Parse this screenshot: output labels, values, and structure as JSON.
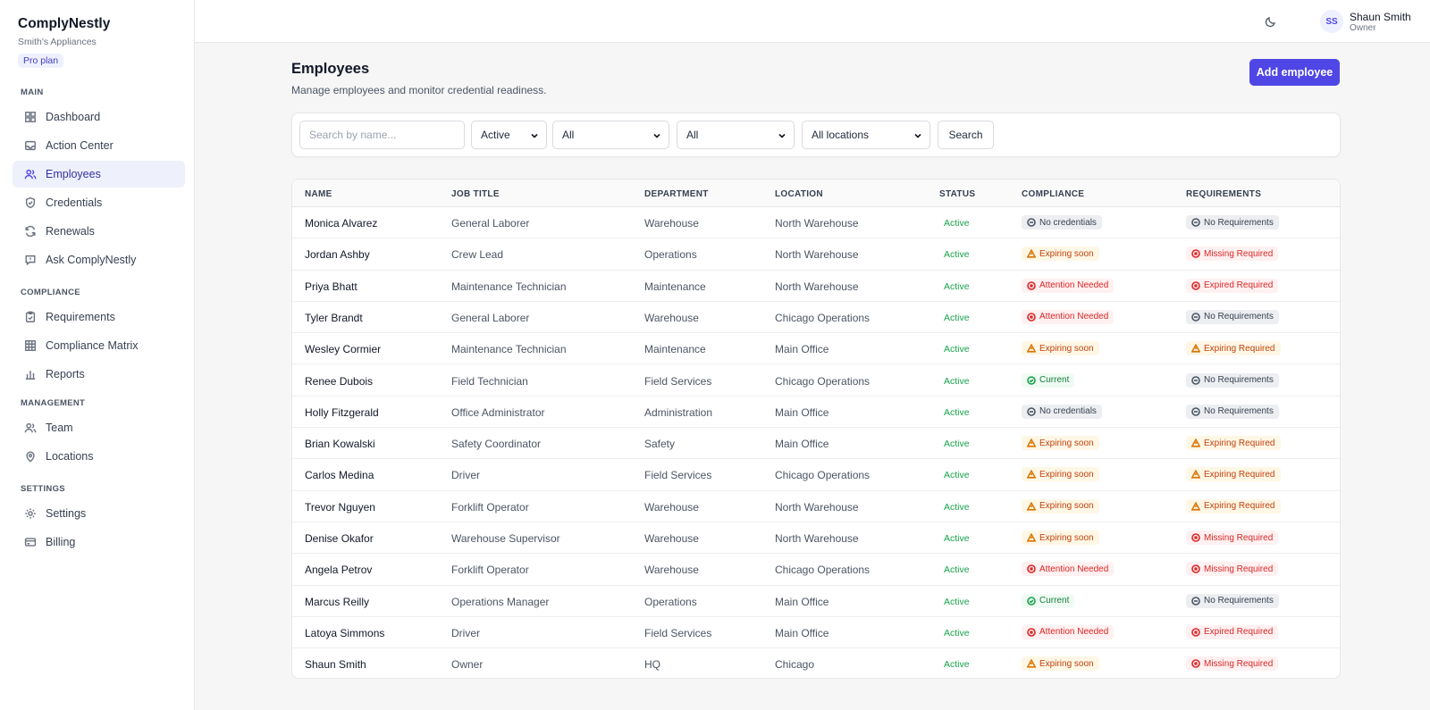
{
  "brand": {
    "name": "ComplyNestly",
    "company": "Smith's Appliances",
    "plan": "Pro plan"
  },
  "nav": {
    "sections": [
      {
        "label": "MAIN",
        "items": [
          {
            "label": "Dashboard",
            "icon": "dashboard-icon"
          },
          {
            "label": "Action Center",
            "icon": "inbox-icon"
          },
          {
            "label": "Employees",
            "icon": "users-icon",
            "active": true
          },
          {
            "label": "Credentials",
            "icon": "shield-check-icon"
          },
          {
            "label": "Renewals",
            "icon": "refresh-icon"
          },
          {
            "label": "Ask ComplyNestly",
            "icon": "chat-icon"
          }
        ]
      },
      {
        "label": "COMPLIANCE",
        "items": [
          {
            "label": "Requirements",
            "icon": "clipboard-check-icon"
          },
          {
            "label": "Compliance Matrix",
            "icon": "grid-icon"
          },
          {
            "label": "Reports",
            "icon": "bar-chart-icon"
          }
        ]
      },
      {
        "label": "MANAGEMENT",
        "items": [
          {
            "label": "Team",
            "icon": "users-icon"
          },
          {
            "label": "Locations",
            "icon": "map-pin-icon"
          }
        ]
      },
      {
        "label": "SETTINGS",
        "items": [
          {
            "label": "Settings",
            "icon": "sun-gear-icon"
          },
          {
            "label": "Billing",
            "icon": "credit-card-icon"
          }
        ]
      }
    ]
  },
  "topbar": {
    "theme_icon": "moon-icon",
    "user_initials": "SS",
    "user_name": "Shaun Smith",
    "user_role": "Owner"
  },
  "page": {
    "title": "Employees",
    "subtitle": "Manage employees and monitor credential readiness.",
    "add_button": "Add employee"
  },
  "filters": {
    "search_placeholder": "Search by name...",
    "status": "Active",
    "filter2": "All",
    "filter3": "All",
    "location": "All locations",
    "search_button": "Search"
  },
  "table": {
    "headers": [
      "NAME",
      "JOB TITLE",
      "DEPARTMENT",
      "LOCATION",
      "STATUS",
      "COMPLIANCE",
      "REQUIREMENTS"
    ],
    "rows": [
      {
        "name": "Monica Alvarez",
        "job": "General Laborer",
        "dept": "Warehouse",
        "loc": "North Warehouse",
        "status": "Active",
        "compliance": {
          "text": "No credentials",
          "tone": "gray",
          "icon": "minus-circle-icon"
        },
        "requirements": {
          "text": "No Requirements",
          "tone": "gray",
          "icon": "minus-circle-icon"
        }
      },
      {
        "name": "Jordan Ashby",
        "job": "Crew Lead",
        "dept": "Operations",
        "loc": "North Warehouse",
        "status": "Active",
        "compliance": {
          "text": "Expiring soon",
          "tone": "orange",
          "icon": "warning-icon"
        },
        "requirements": {
          "text": "Missing Required",
          "tone": "red",
          "icon": "x-circle-icon"
        }
      },
      {
        "name": "Priya Bhatt",
        "job": "Maintenance Technician",
        "dept": "Maintenance",
        "loc": "North Warehouse",
        "status": "Active",
        "compliance": {
          "text": "Attention Needed",
          "tone": "red",
          "icon": "x-circle-icon"
        },
        "requirements": {
          "text": "Expired Required",
          "tone": "red",
          "icon": "x-circle-icon"
        }
      },
      {
        "name": "Tyler Brandt",
        "job": "General Laborer",
        "dept": "Warehouse",
        "loc": "Chicago Operations",
        "status": "Active",
        "compliance": {
          "text": "Attention Needed",
          "tone": "red",
          "icon": "x-circle-icon"
        },
        "requirements": {
          "text": "No Requirements",
          "tone": "gray",
          "icon": "minus-circle-icon"
        }
      },
      {
        "name": "Wesley Cormier",
        "job": "Maintenance Technician",
        "dept": "Maintenance",
        "loc": "Main Office",
        "status": "Active",
        "compliance": {
          "text": "Expiring soon",
          "tone": "orange",
          "icon": "warning-icon"
        },
        "requirements": {
          "text": "Expiring Required",
          "tone": "orange",
          "icon": "warning-icon"
        }
      },
      {
        "name": "Renee Dubois",
        "job": "Field Technician",
        "dept": "Field Services",
        "loc": "Chicago Operations",
        "status": "Active",
        "compliance": {
          "text": "Current",
          "tone": "green",
          "icon": "check-circle-icon"
        },
        "requirements": {
          "text": "No Requirements",
          "tone": "gray",
          "icon": "minus-circle-icon"
        }
      },
      {
        "name": "Holly Fitzgerald",
        "job": "Office Administrator",
        "dept": "Administration",
        "loc": "Main Office",
        "status": "Active",
        "compliance": {
          "text": "No credentials",
          "tone": "gray",
          "icon": "minus-circle-icon"
        },
        "requirements": {
          "text": "No Requirements",
          "tone": "gray",
          "icon": "minus-circle-icon"
        }
      },
      {
        "name": "Brian Kowalski",
        "job": "Safety Coordinator",
        "dept": "Safety",
        "loc": "Main Office",
        "status": "Active",
        "compliance": {
          "text": "Expiring soon",
          "tone": "orange",
          "icon": "warning-icon"
        },
        "requirements": {
          "text": "Expiring Required",
          "tone": "orange",
          "icon": "warning-icon"
        }
      },
      {
        "name": "Carlos Medina",
        "job": "Driver",
        "dept": "Field Services",
        "loc": "Chicago Operations",
        "status": "Active",
        "compliance": {
          "text": "Expiring soon",
          "tone": "orange",
          "icon": "warning-icon"
        },
        "requirements": {
          "text": "Expiring Required",
          "tone": "orange",
          "icon": "warning-icon"
        }
      },
      {
        "name": "Trevor Nguyen",
        "job": "Forklift Operator",
        "dept": "Warehouse",
        "loc": "North Warehouse",
        "status": "Active",
        "compliance": {
          "text": "Expiring soon",
          "tone": "orange",
          "icon": "warning-icon"
        },
        "requirements": {
          "text": "Expiring Required",
          "tone": "orange",
          "icon": "warning-icon"
        }
      },
      {
        "name": "Denise Okafor",
        "job": "Warehouse Supervisor",
        "dept": "Warehouse",
        "loc": "North Warehouse",
        "status": "Active",
        "compliance": {
          "text": "Expiring soon",
          "tone": "orange",
          "icon": "warning-icon"
        },
        "requirements": {
          "text": "Missing Required",
          "tone": "red",
          "icon": "x-circle-icon"
        }
      },
      {
        "name": "Angela Petrov",
        "job": "Forklift Operator",
        "dept": "Warehouse",
        "loc": "Chicago Operations",
        "status": "Active",
        "compliance": {
          "text": "Attention Needed",
          "tone": "red",
          "icon": "x-circle-icon"
        },
        "requirements": {
          "text": "Missing Required",
          "tone": "red",
          "icon": "x-circle-icon"
        }
      },
      {
        "name": "Marcus Reilly",
        "job": "Operations Manager",
        "dept": "Operations",
        "loc": "Main Office",
        "status": "Active",
        "compliance": {
          "text": "Current",
          "tone": "green",
          "icon": "check-circle-icon"
        },
        "requirements": {
          "text": "No Requirements",
          "tone": "gray",
          "icon": "minus-circle-icon"
        }
      },
      {
        "name": "Latoya Simmons",
        "job": "Driver",
        "dept": "Field Services",
        "loc": "Main Office",
        "status": "Active",
        "compliance": {
          "text": "Attention Needed",
          "tone": "red",
          "icon": "x-circle-icon"
        },
        "requirements": {
          "text": "Expired Required",
          "tone": "red",
          "icon": "x-circle-icon"
        }
      },
      {
        "name": "Shaun Smith",
        "job": "Owner",
        "dept": "HQ",
        "loc": "Chicago",
        "status": "Active",
        "compliance": {
          "text": "Expiring soon",
          "tone": "orange",
          "icon": "warning-icon"
        },
        "requirements": {
          "text": "Missing Required",
          "tone": "red",
          "icon": "x-circle-icon"
        }
      }
    ]
  },
  "colors": {
    "accent": "#4f46e5",
    "active_nav_bg": "#eef0fb",
    "status_green": "#16a34a",
    "warning": "#d97706",
    "danger": "#dc2626"
  }
}
